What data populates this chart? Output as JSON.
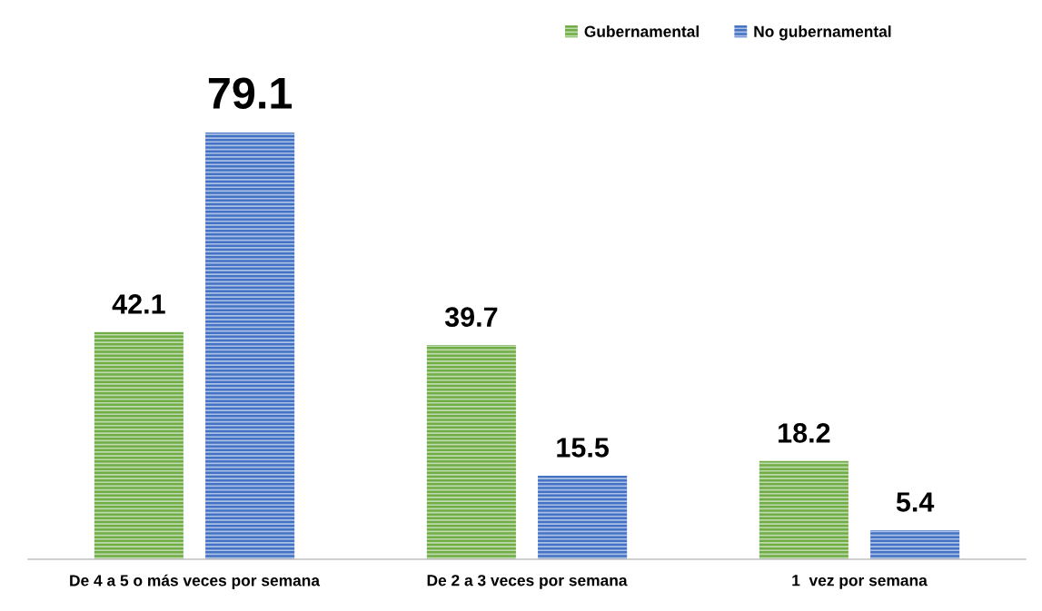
{
  "chart_data": {
    "type": "bar",
    "categories": [
      "De 4 a 5 o más veces por semana",
      "De 2 a 3 veces por semana",
      "1  vez por semana"
    ],
    "series": [
      {
        "name": "Gubernamental",
        "color": "#70ad47",
        "values": [
          42.1,
          39.7,
          18.2
        ]
      },
      {
        "name": "No gubernamental",
        "color": "#4472c4",
        "values": [
          79.1,
          15.5,
          5.4
        ]
      }
    ],
    "data_labels": true,
    "legend": "top right",
    "grid": false,
    "tick_labels": "x"
  }
}
